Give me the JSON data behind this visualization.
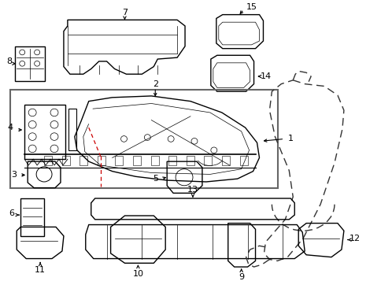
{
  "bg_color": "#ffffff",
  "line_color": "#000000",
  "box_color": "#666666",
  "red_color": "#cc0000",
  "figsize": [
    4.85,
    3.57
  ],
  "dpi": 100
}
